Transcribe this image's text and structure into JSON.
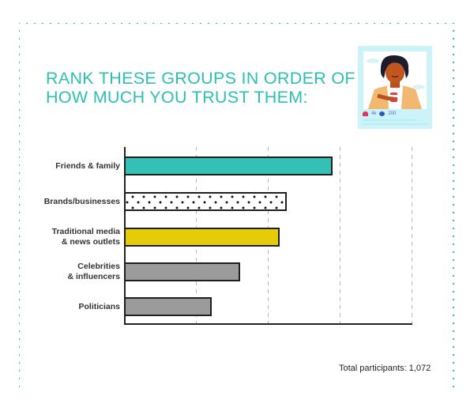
{
  "title": {
    "line1": "RANK THESE GROUPS IN ORDER OF",
    "line2": "HOW MUCH YOU TRUST THEM:"
  },
  "illustration": {
    "icon": "social-media-post-illustration",
    "likes": "4k",
    "comments": "200"
  },
  "footnote": "Total participants: 1,072",
  "colors": {
    "accent": "#2dbfb1",
    "teal_bar": "#35c0b6",
    "yellow_bar": "#e5cc0a",
    "gray_bar": "#9b9b9b",
    "border_dots": "#3fc1b5"
  },
  "chart_data": {
    "type": "bar",
    "orientation": "horizontal",
    "title": "RANK THESE GROUPS IN ORDER OF HOW MUCH YOU TRUST THEM:",
    "categories": [
      "Friends & family",
      "Brands/businesses",
      "Traditional media & news outlets",
      "Celebrities & influencers",
      "Politicians"
    ],
    "category_lines": [
      [
        "Friends & family"
      ],
      [
        "Brands/businesses"
      ],
      [
        "Traditional media",
        "& news outlets"
      ],
      [
        "Celebrities",
        "& influencers"
      ],
      [
        "Politicians"
      ]
    ],
    "values": [
      2.88,
      2.24,
      2.14,
      1.59,
      1.2
    ],
    "fills": [
      "teal",
      "dotted",
      "yellow",
      "gray",
      "gray"
    ],
    "xlabel": "",
    "ylabel": "",
    "xlim": [
      0,
      4
    ],
    "x_ticks_labeled": false,
    "grid": "vertical dotted lines at 1, 2, 3, 4",
    "legend": "none",
    "note": "Total participants: 1,072"
  }
}
